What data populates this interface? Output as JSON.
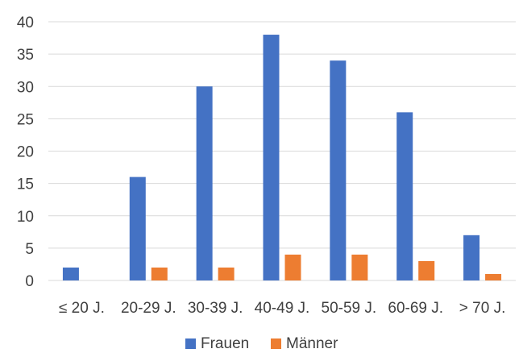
{
  "chart_data": {
    "type": "bar",
    "categories": [
      "≤ 20 J.",
      "20-29 J.",
      "30-39 J.",
      "40-49 J.",
      "50-59 J.",
      "60-69 J.",
      "> 70 J."
    ],
    "series": [
      {
        "name": "Frauen",
        "values": [
          2,
          16,
          30,
          38,
          34,
          26,
          7
        ],
        "color": "#4472C4"
      },
      {
        "name": "Männer",
        "values": [
          0,
          2,
          2,
          4,
          4,
          3,
          1
        ],
        "color": "#ED7D31"
      }
    ],
    "title": "",
    "xlabel": "",
    "ylabel": "",
    "ylim": [
      0,
      40
    ],
    "yticks": [
      0,
      5,
      10,
      15,
      20,
      25,
      30,
      35,
      40
    ],
    "grid": true,
    "legend_position": "bottom"
  }
}
